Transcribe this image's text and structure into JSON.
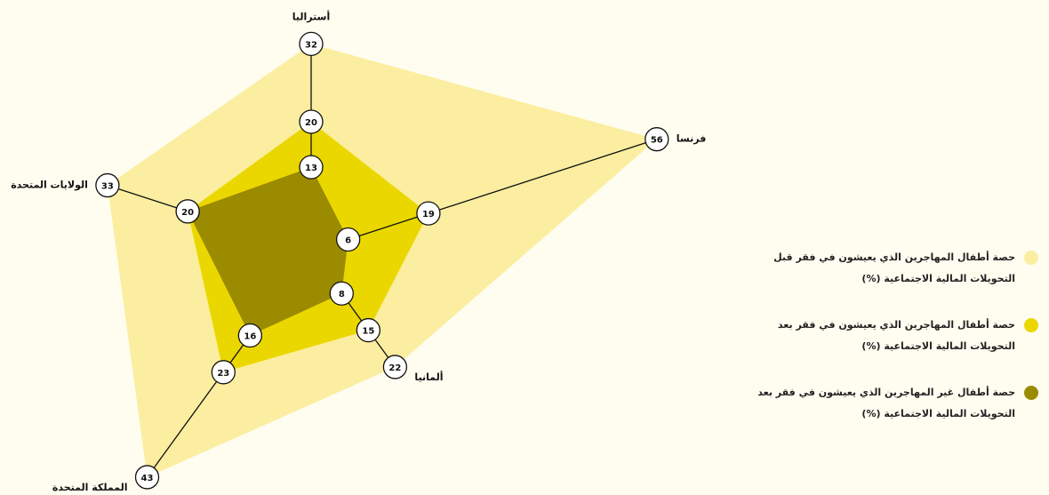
{
  "chart_data": {
    "type": "radar",
    "categories": [
      "أستراليا",
      "فرنسا",
      "ألمانيا",
      "المملكة المتحدة",
      "الولايات المتحدة"
    ],
    "series": [
      {
        "name": "حصة أطفال المهاجرين الذي يعيشون في فقر قبل التحويلات المالية الاجتماعية (%)",
        "color": "#fbeea0",
        "values": [
          32,
          56,
          22,
          43,
          33
        ]
      },
      {
        "name": "حصة أطفال المهاجرين الذي يعيشون في فقر بعد التحويلات المالية الاجتماعية (%)",
        "color": "#ebd700",
        "values": [
          20,
          19,
          15,
          23,
          20
        ]
      },
      {
        "name": "حصة أطفال غير المهاجرين الذي يعيشون في فقر بعد التحويلات المالية الاجتماعية (%)",
        "color": "#9b8b00",
        "values": [
          13,
          6,
          8,
          16,
          20
        ]
      }
    ],
    "rlim": [
      0,
      60
    ]
  }
}
